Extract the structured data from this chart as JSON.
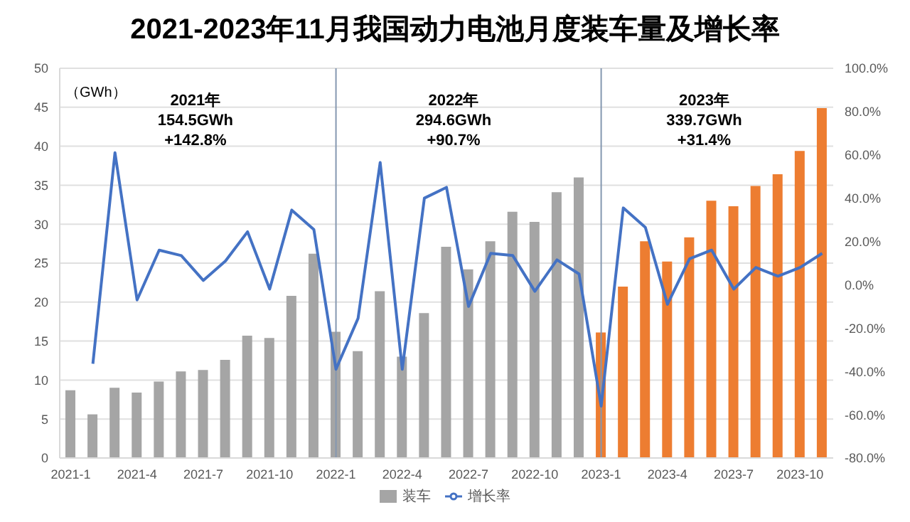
{
  "chart_data": {
    "type": "bar",
    "title": "2021-2023年11月我国动力电池月度装车量及增长率",
    "ylabel": "（GWh）",
    "categories": [
      "2021-1",
      null,
      null,
      "2021-4",
      null,
      null,
      "2021-7",
      null,
      null,
      "2021-10",
      null,
      null,
      "2022-1",
      null,
      null,
      "2022-4",
      null,
      null,
      "2022-7",
      null,
      null,
      "2022-10",
      null,
      null,
      "2023-1",
      null,
      null,
      "2023-4",
      null,
      null,
      "2023-7",
      null,
      null,
      "2023-10",
      null
    ],
    "series": [
      {
        "name": "装车",
        "colors": [
          "#a5a5a5",
          "#a5a5a5",
          "#a5a5a5",
          "#a5a5a5",
          "#a5a5a5",
          "#a5a5a5",
          "#a5a5a5",
          "#a5a5a5",
          "#a5a5a5",
          "#a5a5a5",
          "#a5a5a5",
          "#a5a5a5",
          "#a5a5a5",
          "#a5a5a5",
          "#a5a5a5",
          "#a5a5a5",
          "#a5a5a5",
          "#a5a5a5",
          "#a5a5a5",
          "#a5a5a5",
          "#a5a5a5",
          "#a5a5a5",
          "#a5a5a5",
          "#a5a5a5",
          "#ed7d31",
          "#ed7d31",
          "#ed7d31",
          "#ed7d31",
          "#ed7d31",
          "#ed7d31",
          "#ed7d31",
          "#ed7d31",
          "#ed7d31",
          "#ed7d31",
          "#ed7d31"
        ],
        "values": [
          8.7,
          5.6,
          9.0,
          8.4,
          9.8,
          11.1,
          11.3,
          12.6,
          15.7,
          15.4,
          20.8,
          26.2,
          16.2,
          13.7,
          21.4,
          13.0,
          18.6,
          27.1,
          24.2,
          27.8,
          31.6,
          30.3,
          34.1,
          36.0,
          16.1,
          22.0,
          27.8,
          25.2,
          28.3,
          33.0,
          32.3,
          34.9,
          36.4,
          39.4,
          44.9
        ]
      },
      {
        "name": "增长率",
        "type": "line",
        "axis": "y2",
        "color": "#4472c4",
        "values": [
          null,
          -36.5,
          61,
          -7,
          16,
          13.5,
          2,
          11,
          24.5,
          -2,
          34.5,
          25.5,
          -39,
          -15.5,
          56.5,
          -39,
          40,
          45,
          -10,
          14.5,
          13.5,
          -3,
          11.5,
          5,
          -56,
          35.5,
          26.5,
          -9,
          12,
          16,
          -2,
          8,
          4,
          8,
          14.5
        ]
      }
    ],
    "ylim": [
      0,
      50
    ],
    "yticks": [
      0,
      5,
      10,
      15,
      20,
      25,
      30,
      35,
      40,
      45,
      50
    ],
    "y2lim": [
      -80,
      100
    ],
    "y2ticks": [
      {
        "value": -80,
        "label": "-80.0%"
      },
      {
        "value": -60,
        "label": "-60.0%"
      },
      {
        "value": -40,
        "label": "-40.0%"
      },
      {
        "value": -20,
        "label": "-20.0%"
      },
      {
        "value": 0,
        "label": "0.0%"
      },
      {
        "value": 20,
        "label": "20.0%"
      },
      {
        "value": 40,
        "label": "40.0%"
      },
      {
        "value": 60,
        "label": "60.0%"
      },
      {
        "value": 80,
        "label": "80.0%"
      },
      {
        "value": 100,
        "label": "100.0%"
      }
    ],
    "ref_lines": [
      {
        "axis": "x",
        "value": "2022-1",
        "color": "#8497b0"
      },
      {
        "axis": "x",
        "value": "2023-1",
        "color": "#8497b0"
      }
    ],
    "annotations": [
      "2021年\n154.5GWh\n+142.8%",
      "2022年\n294.6GWh\n+90.7%",
      "2023年\n339.7GWh\n+31.4%"
    ],
    "grid": "y",
    "legend": "bottom",
    "marker": "none",
    "line_style": "solid"
  }
}
